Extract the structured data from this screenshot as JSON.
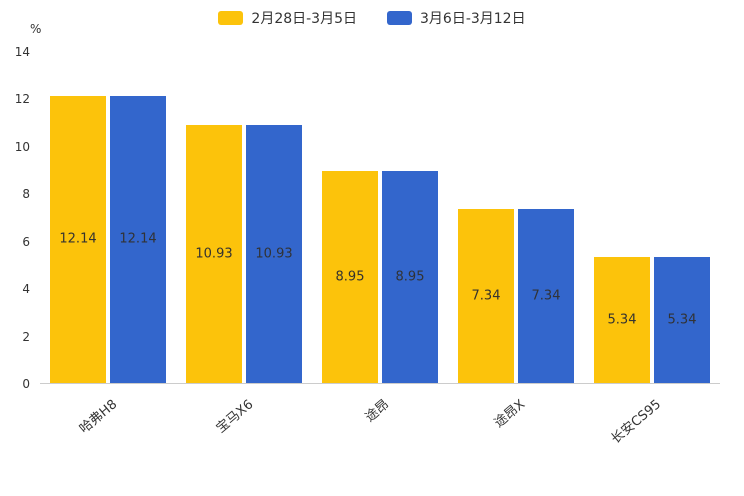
{
  "chart_data": {
    "type": "bar",
    "categories": [
      "哈弗H8",
      "宝马X6",
      "途昂",
      "途昂X",
      "长安CS95"
    ],
    "series": [
      {
        "name": "2月28日-3月5日",
        "color": "#FCC30B",
        "values": [
          12.14,
          10.93,
          8.95,
          7.34,
          5.34
        ]
      },
      {
        "name": "3月6日-3月12日",
        "color": "#3366CC",
        "values": [
          12.14,
          10.93,
          8.95,
          7.34,
          5.34
        ]
      }
    ],
    "title": "",
    "xlabel": "",
    "ylabel": "%",
    "ylim": [
      0,
      14
    ],
    "ytick_step": 2,
    "grid": false,
    "legend_position": "top",
    "value_labels": "inside-center"
  }
}
